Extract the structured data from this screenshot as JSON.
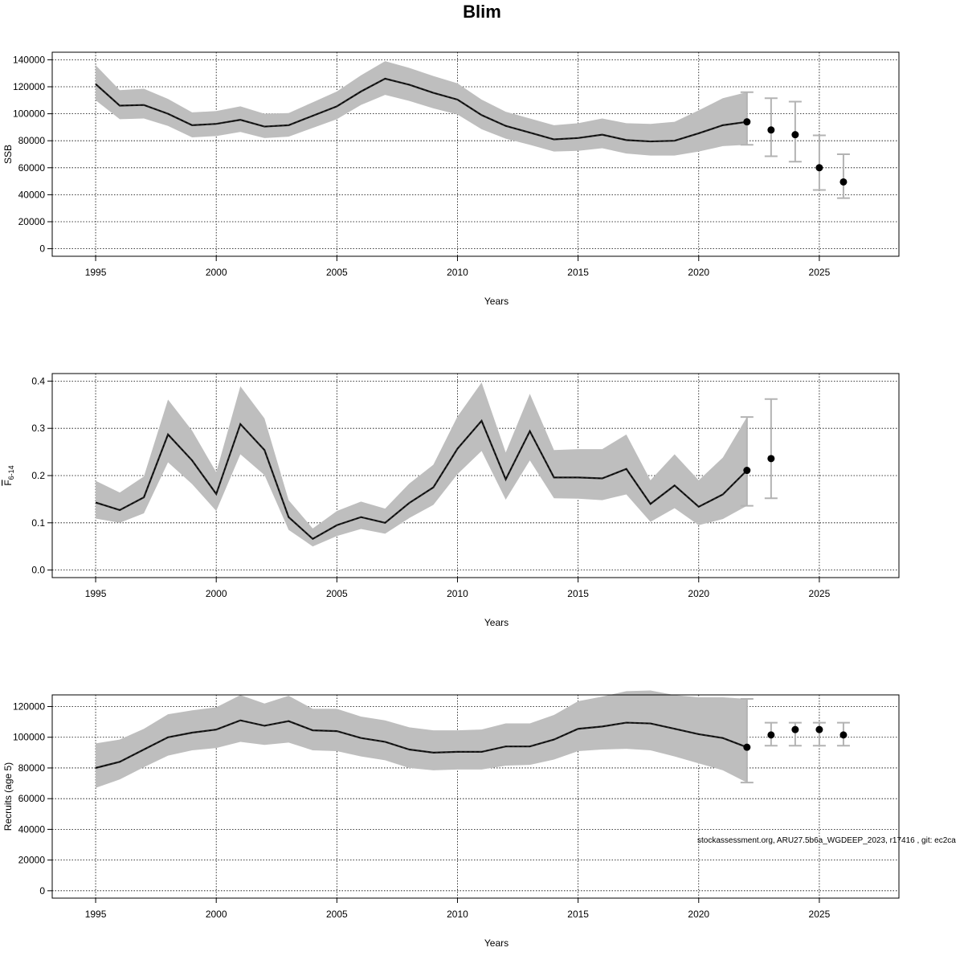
{
  "title": "Blim",
  "footer_note": "stockassessment.org, ARU27.5b6a_WGDEEP_2023, r17416 , git: ec2ca",
  "colors": {
    "band": "#bebebe",
    "line": "#222222",
    "point": "#000000",
    "errorbar": "#b3b3b3",
    "grid": "#000000"
  },
  "chart_data": [
    {
      "type": "line",
      "ylabel": "SSB",
      "xlabel": "Years",
      "xlim": [
        1993.2,
        2028.3
      ],
      "ylim": [
        -5600,
        145600
      ],
      "xticks": [
        1995,
        2000,
        2005,
        2010,
        2015,
        2020,
        2025
      ],
      "yticks": [
        0,
        20000,
        40000,
        60000,
        80000,
        100000,
        120000,
        140000
      ],
      "grid": true,
      "x": [
        1995,
        1996,
        1997,
        1998,
        1999,
        2000,
        2001,
        2002,
        2003,
        2004,
        2005,
        2006,
        2007,
        2008,
        2009,
        2010,
        2011,
        2012,
        2013,
        2014,
        2015,
        2016,
        2017,
        2018,
        2019,
        2020,
        2021,
        2022
      ],
      "estimate": [
        122000,
        106000,
        106500,
        100000,
        91500,
        92500,
        95500,
        90500,
        91500,
        98500,
        105500,
        116500,
        126000,
        121500,
        115500,
        110500,
        99000,
        91000,
        86000,
        81000,
        82000,
        84500,
        80500,
        79500,
        80000,
        85500,
        91500,
        94000
      ],
      "lower": [
        110000,
        96000,
        96500,
        91000,
        82500,
        83500,
        86500,
        82000,
        83000,
        89500,
        96000,
        106500,
        114000,
        109500,
        104000,
        99500,
        88500,
        81500,
        77000,
        72000,
        72500,
        74500,
        70500,
        69000,
        69000,
        72000,
        76000,
        77000
      ],
      "upper": [
        136000,
        117500,
        118500,
        111000,
        101000,
        102000,
        105500,
        100000,
        100500,
        108500,
        116500,
        128500,
        139000,
        134000,
        128000,
        122500,
        110500,
        101500,
        96500,
        91500,
        93000,
        96500,
        93000,
        92500,
        94000,
        102500,
        111500,
        116000
      ],
      "forecast": {
        "x": [
          2022,
          2023,
          2024,
          2025,
          2026
        ],
        "estimate": [
          94000,
          88000,
          84500,
          60000,
          49500
        ],
        "lower": [
          77000,
          68500,
          64500,
          43500,
          37500
        ],
        "upper": [
          116000,
          111500,
          109000,
          84000,
          70000
        ]
      }
    },
    {
      "type": "line",
      "ylabel": "F6-14",
      "ylabel_main": "F",
      "ylabel_sub": "6-14",
      "xlabel": "Years",
      "xlim": [
        1993.2,
        2028.3
      ],
      "ylim": [
        -0.016,
        0.416
      ],
      "xticks": [
        1995,
        2000,
        2005,
        2010,
        2015,
        2020,
        2025
      ],
      "yticks": [
        0.0,
        0.1,
        0.2,
        0.3,
        0.4
      ],
      "ytick_labels": [
        "0.0",
        "0.1",
        "0.2",
        "0.3",
        "0.4"
      ],
      "grid": true,
      "x": [
        1995,
        1996,
        1997,
        1998,
        1999,
        2000,
        2001,
        2002,
        2003,
        2004,
        2005,
        2006,
        2007,
        2008,
        2009,
        2010,
        2011,
        2012,
        2013,
        2014,
        2015,
        2016,
        2017,
        2018,
        2019,
        2020,
        2021,
        2022
      ],
      "estimate": [
        0.143,
        0.127,
        0.154,
        0.287,
        0.232,
        0.161,
        0.309,
        0.254,
        0.112,
        0.066,
        0.095,
        0.112,
        0.1,
        0.142,
        0.175,
        0.257,
        0.316,
        0.192,
        0.294,
        0.196,
        0.196,
        0.194,
        0.214,
        0.14,
        0.179,
        0.134,
        0.16,
        0.211
      ],
      "lower": [
        0.109,
        0.1,
        0.12,
        0.228,
        0.182,
        0.125,
        0.245,
        0.201,
        0.085,
        0.05,
        0.072,
        0.087,
        0.077,
        0.11,
        0.138,
        0.203,
        0.252,
        0.149,
        0.232,
        0.152,
        0.151,
        0.148,
        0.16,
        0.102,
        0.131,
        0.095,
        0.108,
        0.136
      ],
      "upper": [
        0.189,
        0.164,
        0.198,
        0.361,
        0.295,
        0.207,
        0.389,
        0.321,
        0.148,
        0.088,
        0.125,
        0.145,
        0.13,
        0.183,
        0.223,
        0.325,
        0.397,
        0.249,
        0.373,
        0.254,
        0.256,
        0.256,
        0.287,
        0.19,
        0.245,
        0.19,
        0.238,
        0.324
      ],
      "forecast": {
        "x": [
          2022,
          2023
        ],
        "estimate": [
          0.211,
          0.236
        ],
        "lower": [
          0.136,
          0.152
        ],
        "upper": [
          0.324,
          0.362
        ]
      }
    },
    {
      "type": "line",
      "ylabel": "Recruits (age 5)",
      "xlabel": "Years",
      "xlim": [
        1993.2,
        2028.3
      ],
      "ylim": [
        -4800,
        127600
      ],
      "xticks": [
        1995,
        2000,
        2005,
        2010,
        2015,
        2020,
        2025
      ],
      "yticks": [
        0,
        20000,
        40000,
        60000,
        80000,
        100000,
        120000
      ],
      "grid": true,
      "x": [
        1995,
        1996,
        1997,
        1998,
        1999,
        2000,
        2001,
        2002,
        2003,
        2004,
        2005,
        2006,
        2007,
        2008,
        2009,
        2010,
        2011,
        2012,
        2013,
        2014,
        2015,
        2016,
        2017,
        2018,
        2019,
        2020,
        2021,
        2022
      ],
      "estimate": [
        80000,
        84000,
        92000,
        100000,
        103000,
        105000,
        111000,
        107500,
        110500,
        104500,
        104000,
        99500,
        97000,
        92000,
        90000,
        90500,
        90500,
        94000,
        94000,
        98500,
        105500,
        107000,
        109500,
        109000,
        105500,
        102000,
        99500,
        93500
      ],
      "lower": [
        67000,
        72500,
        80500,
        88000,
        91500,
        93000,
        97000,
        95000,
        96500,
        91500,
        91000,
        87500,
        85000,
        80000,
        78500,
        79000,
        79000,
        81500,
        82000,
        85500,
        91000,
        92000,
        92500,
        91500,
        87500,
        83000,
        78500,
        70500
      ],
      "upper": [
        96000,
        98500,
        105500,
        115000,
        117500,
        119500,
        127500,
        122000,
        127000,
        118500,
        118500,
        113500,
        111000,
        106500,
        104500,
        104500,
        105000,
        109000,
        109000,
        114500,
        123500,
        126500,
        130000,
        130500,
        127500,
        126000,
        126000,
        125000
      ],
      "forecast": {
        "x": [
          2022,
          2023,
          2024,
          2025,
          2026
        ],
        "estimate": [
          93500,
          101500,
          105000,
          105000,
          101500
        ],
        "lower": [
          70500,
          94500,
          94500,
          94500,
          94500
        ],
        "upper": [
          125000,
          109500,
          109500,
          109500,
          109500
        ]
      }
    }
  ]
}
